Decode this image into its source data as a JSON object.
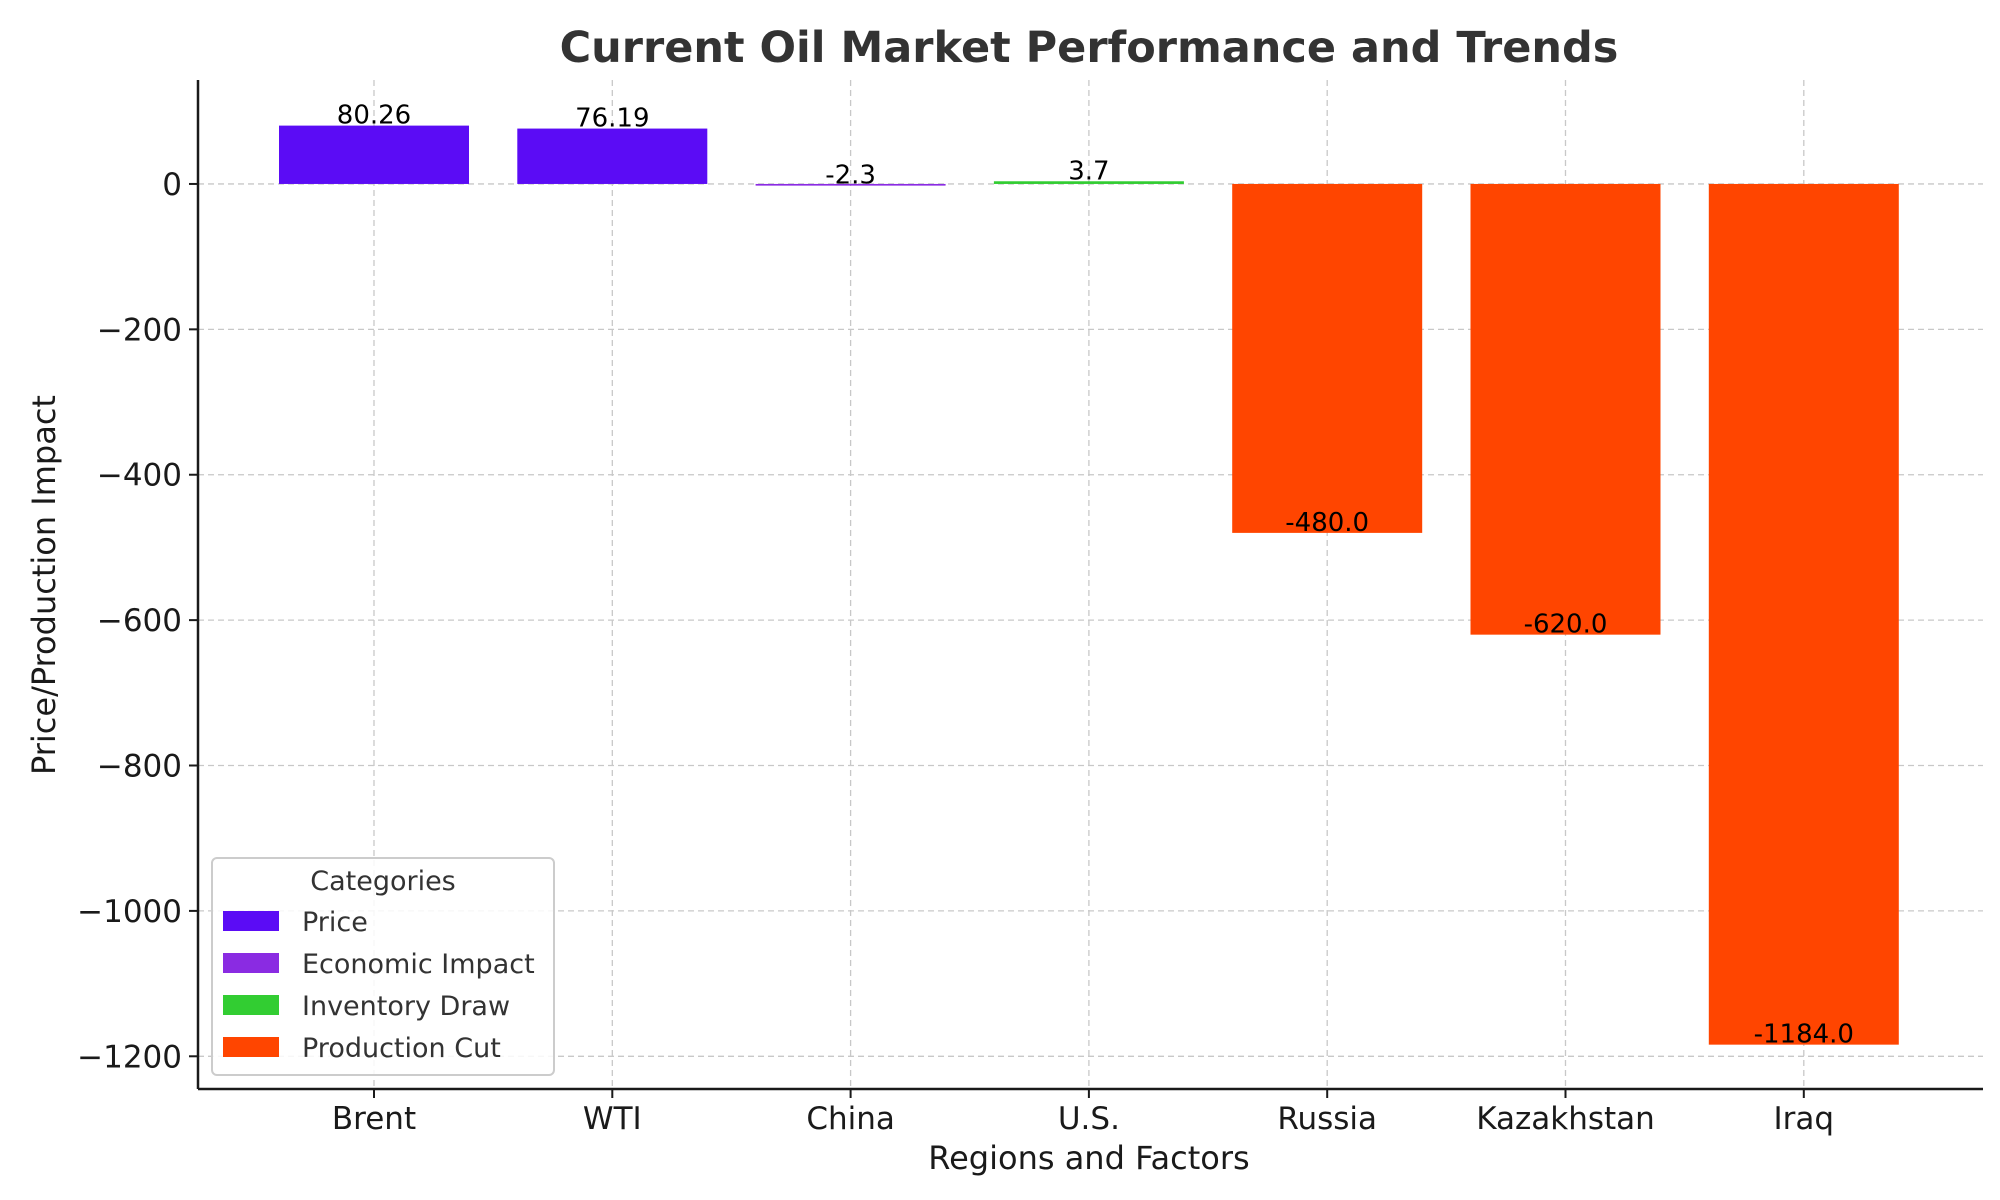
{
  "chart_data": {
    "type": "bar",
    "title": "Current Oil Market Performance and Trends",
    "xlabel": "Regions and Factors",
    "ylabel": "Price/Production Impact",
    "categories": [
      "Brent",
      "WTI",
      "China",
      "U.S.",
      "Russia",
      "Kazakhstan",
      "Iraq"
    ],
    "values": [
      80.26,
      76.19,
      -2.3,
      3.7,
      -480.0,
      -620.0,
      -1184.0
    ],
    "value_labels": [
      "80.26",
      "76.19",
      "-2.3",
      "3.7",
      "-480.0",
      "-620.0",
      "-1184.0"
    ],
    "bar_categories": [
      "Price",
      "Price",
      "Economic Impact",
      "Inventory Draw",
      "Production Cut",
      "Production Cut",
      "Production Cut"
    ],
    "ylim": [
      -1245,
      143
    ],
    "yticks": [
      0,
      -200,
      -400,
      -600,
      -800,
      -1000,
      -1200
    ],
    "ytick_labels": [
      "0",
      "−200",
      "−400",
      "−600",
      "−800",
      "−1000",
      "−1200"
    ],
    "grid": true,
    "legend": {
      "title": "Categories",
      "position": "lower-left",
      "entries": [
        {
          "label": "Price",
          "color": "#5b0cf5"
        },
        {
          "label": "Economic Impact",
          "color": "#8a2be2"
        },
        {
          "label": "Inventory Draw",
          "color": "#32cd32"
        },
        {
          "label": "Production Cut",
          "color": "#ff4500"
        }
      ]
    },
    "colors": {
      "Price": "#5b0cf5",
      "Economic Impact": "#8a2be2",
      "Inventory Draw": "#32cd32",
      "Production Cut": "#ff4500"
    }
  }
}
